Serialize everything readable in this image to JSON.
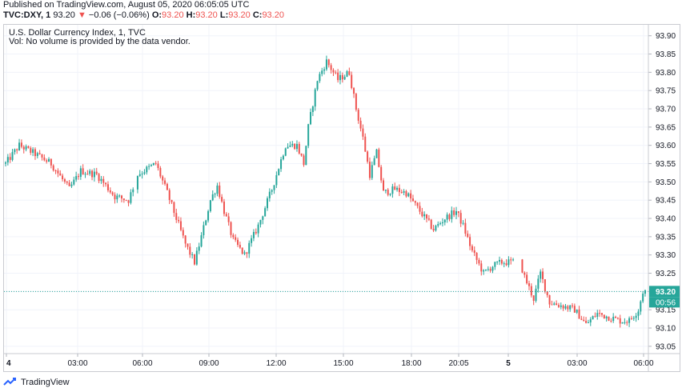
{
  "header": {
    "published": "Published on TradingView.com, August 05, 2020 06:05:05 UTC",
    "symbol": "TVC:DXY, 1",
    "last": "93.20",
    "change_arrow": "▼",
    "change": "−0.06 (−0.06%)",
    "o_label": "O:",
    "o_value": "93.20",
    "h_label": "H:",
    "h_value": "93.20",
    "l_label": "L:",
    "l_value": "93.20",
    "c_label": "C:",
    "c_value": "93.20"
  },
  "legend": {
    "title": "U.S. Dollar Currency Index, 1, TVC",
    "volume_note": "Vol: No volume is provided by the data vendor."
  },
  "footer": {
    "brand": "TradingView",
    "logo_icon": "tradingview-logo-icon"
  },
  "colors": {
    "up": "#26a69a",
    "down": "#ef5350",
    "last_price": "#26a69a",
    "grid": "#f0f3fa"
  },
  "chart_data": {
    "type": "candlestick",
    "title": "U.S. Dollar Currency Index, 1, TVC",
    "x_ticks": [
      "4",
      "03:00",
      "06:00",
      "09:00",
      "12:00",
      "15:00",
      "18:00",
      "20:05",
      "5",
      "03:00",
      "06:00"
    ],
    "bold_x_ticks": [
      "4",
      "5"
    ],
    "y_ticks": [
      "93.90",
      "93.85",
      "93.80",
      "93.75",
      "93.70",
      "93.65",
      "93.60",
      "93.55",
      "93.50",
      "93.45",
      "93.40",
      "93.35",
      "93.30",
      "93.25",
      "93.20",
      "93.15",
      "93.10",
      "93.05"
    ],
    "ylim": [
      93.03,
      93.93
    ],
    "grid": true,
    "last_price_label": "93.20",
    "last_price": 93.2,
    "countdown": "00:56",
    "path": [
      [
        0,
        93.55
      ],
      [
        6,
        93.6
      ],
      [
        12,
        93.58
      ],
      [
        20,
        93.55
      ],
      [
        28,
        93.48
      ],
      [
        33,
        93.53
      ],
      [
        40,
        93.52
      ],
      [
        48,
        93.46
      ],
      [
        54,
        93.45
      ],
      [
        58,
        93.52
      ],
      [
        66,
        93.55
      ],
      [
        71,
        93.47
      ],
      [
        75,
        93.4
      ],
      [
        79,
        93.33
      ],
      [
        83,
        93.28
      ],
      [
        86,
        93.35
      ],
      [
        90,
        93.45
      ],
      [
        93,
        93.49
      ],
      [
        96,
        93.42
      ],
      [
        100,
        93.34
      ],
      [
        105,
        93.3
      ],
      [
        111,
        93.38
      ],
      [
        117,
        93.48
      ],
      [
        123,
        93.6
      ],
      [
        128,
        93.6
      ],
      [
        131,
        93.55
      ],
      [
        133,
        93.65
      ],
      [
        137,
        93.78
      ],
      [
        141,
        93.83
      ],
      [
        146,
        93.78
      ],
      [
        151,
        93.8
      ],
      [
        154,
        93.7
      ],
      [
        157,
        93.62
      ],
      [
        160,
        93.52
      ],
      [
        163,
        93.58
      ],
      [
        166,
        93.47
      ],
      [
        171,
        93.48
      ],
      [
        176,
        93.47
      ],
      [
        182,
        93.42
      ],
      [
        188,
        93.37
      ],
      [
        193,
        93.4
      ],
      [
        198,
        93.42
      ],
      [
        201,
        93.38
      ],
      [
        205,
        93.31
      ],
      [
        210,
        93.25
      ],
      [
        214,
        93.27
      ],
      [
        218,
        93.28
      ],
      [
        222,
        93.28
      ],
      [
        226,
        93.28
      ],
      [
        228,
        93.24
      ],
      [
        232,
        93.18
      ],
      [
        235,
        93.25
      ],
      [
        239,
        93.17
      ],
      [
        245,
        93.16
      ],
      [
        250,
        93.15
      ],
      [
        255,
        93.11
      ],
      [
        260,
        93.14
      ],
      [
        265,
        93.13
      ],
      [
        270,
        93.12
      ],
      [
        274,
        93.12
      ],
      [
        278,
        93.15
      ],
      [
        280,
        93.2
      ]
    ],
    "x_range": [
      0,
      281
    ]
  }
}
